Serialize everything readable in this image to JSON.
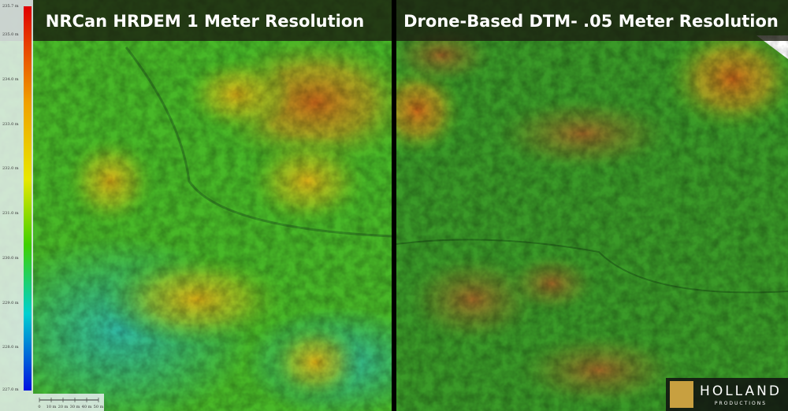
{
  "left_panel": {
    "title": "NRCan HRDEM 1 Meter Resolution"
  },
  "right_panel": {
    "title": "Drone-Based DTM- .05 Meter Resolution"
  },
  "elevation_legend": {
    "labels": [
      "235.7 m",
      "235.0 m",
      "234.0 m",
      "233.0 m",
      "232.0 m",
      "231.0 m",
      "230.0 m",
      "229.0 m",
      "228.0 m",
      "227.0 m"
    ]
  },
  "scale_bar": {
    "labels": [
      "0",
      "10 m",
      "20 m",
      "30 m",
      "40 m",
      "50 m"
    ]
  },
  "logo": {
    "name": "HOLLAND",
    "tagline": "PRODUCTIONS"
  }
}
